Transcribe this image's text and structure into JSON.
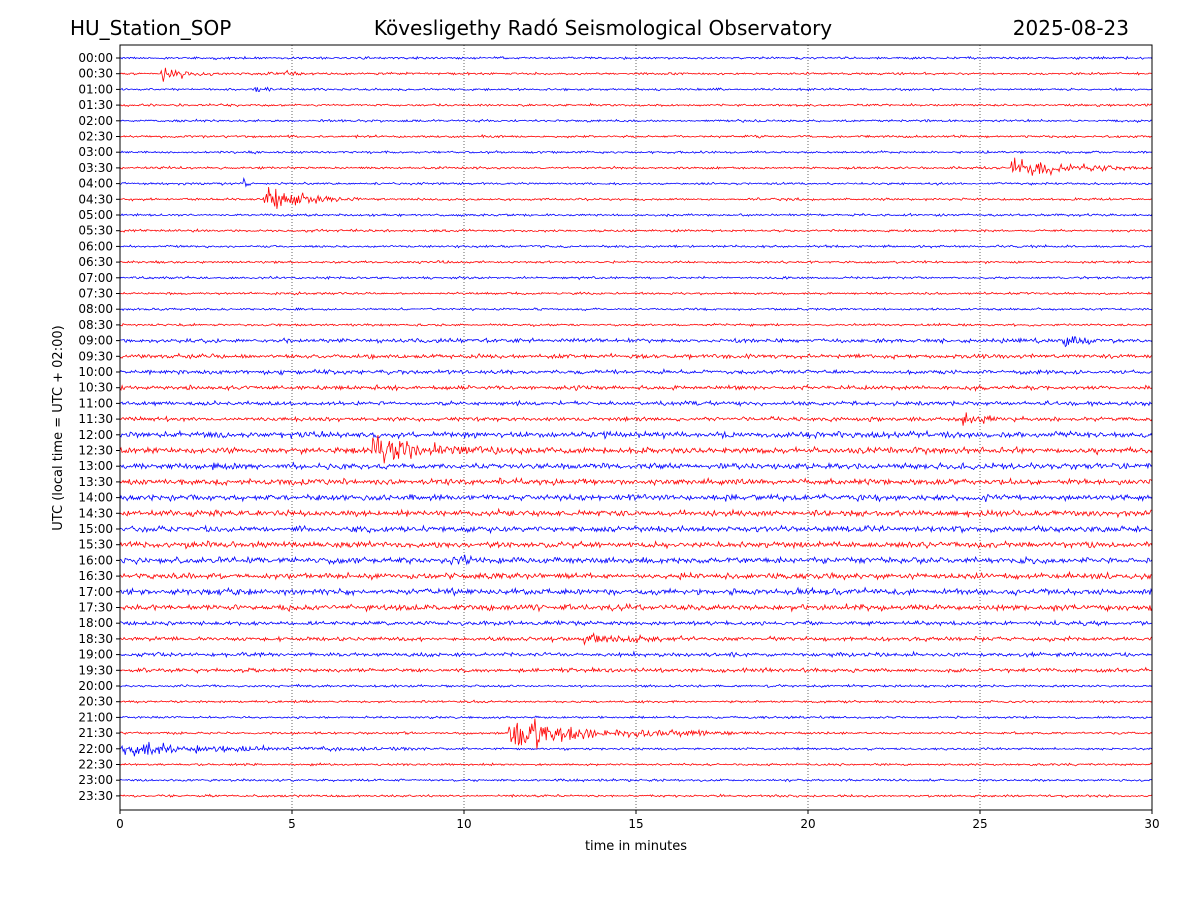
{
  "header": {
    "station": "HU_Station_SOP",
    "observatory": "Kövesligethy Radó Seismological Observatory",
    "date": "2025-08-23"
  },
  "chart_data": {
    "type": "line",
    "title": "Kövesligethy Radó Seismological Observatory",
    "xlabel": "time in minutes",
    "ylabel": "UTC (local time = UTC + 02:00)",
    "xlim": [
      0,
      30
    ],
    "xticks": [
      "0",
      "5",
      "10",
      "15",
      "20",
      "25",
      "30"
    ],
    "grid": "vertical dotted at 5-minute ticks",
    "series_colors": [
      "#0000ff",
      "#ff0000"
    ],
    "rows": [
      "00:00",
      "00:30",
      "01:00",
      "01:30",
      "02:00",
      "02:30",
      "03:00",
      "03:30",
      "04:00",
      "04:30",
      "05:00",
      "05:30",
      "06:00",
      "06:30",
      "07:00",
      "07:30",
      "08:00",
      "08:30",
      "09:00",
      "09:30",
      "10:00",
      "10:30",
      "11:00",
      "11:30",
      "12:00",
      "12:30",
      "13:00",
      "13:30",
      "14:00",
      "14:30",
      "15:00",
      "15:30",
      "16:00",
      "16:30",
      "17:00",
      "17:30",
      "18:00",
      "18:30",
      "19:00",
      "19:30",
      "20:00",
      "20:30",
      "21:00",
      "21:30",
      "22:00",
      "22:30",
      "23:00",
      "23:30"
    ],
    "events": [
      {
        "row": "00:30",
        "start_min": 1.2,
        "duration_min": 1.5,
        "amplitude": 10
      },
      {
        "row": "00:30",
        "start_min": 4.8,
        "duration_min": 0.4,
        "amplitude": 4
      },
      {
        "row": "01:00",
        "start_min": 3.9,
        "duration_min": 0.8,
        "amplitude": 4
      },
      {
        "row": "03:30",
        "start_min": 25.9,
        "duration_min": 4.0,
        "amplitude": 11
      },
      {
        "row": "04:00",
        "start_min": 3.6,
        "duration_min": 0.3,
        "amplitude": 4
      },
      {
        "row": "04:30",
        "start_min": 4.2,
        "duration_min": 3.0,
        "amplitude": 12
      },
      {
        "row": "09:00",
        "start_min": 27.4,
        "duration_min": 1.3,
        "amplitude": 6
      },
      {
        "row": "11:30",
        "start_min": 24.5,
        "duration_min": 1.6,
        "amplitude": 4
      },
      {
        "row": "12:30",
        "start_min": 7.3,
        "duration_min": 4.5,
        "amplitude": 12
      },
      {
        "row": "16:00",
        "start_min": 9.6,
        "duration_min": 1.5,
        "amplitude": 6
      },
      {
        "row": "18:30",
        "start_min": 13.5,
        "duration_min": 3.3,
        "amplitude": 5
      },
      {
        "row": "21:30",
        "start_min": 11.3,
        "duration_min": 6.5,
        "amplitude": 14
      },
      {
        "row": "22:00",
        "start_min": 0.0,
        "duration_min": 9.0,
        "amplitude": 5
      }
    ]
  }
}
